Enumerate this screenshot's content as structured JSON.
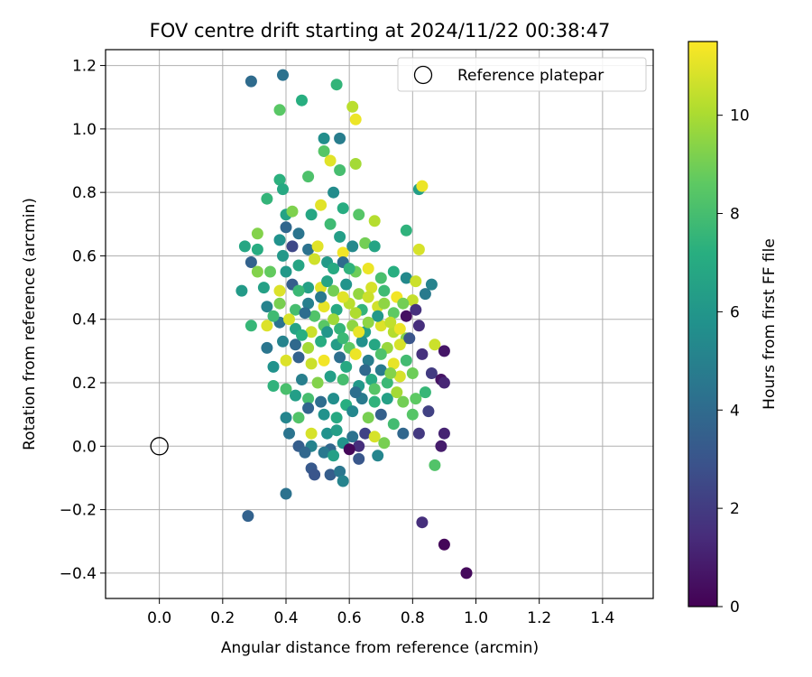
{
  "chart_data": {
    "type": "scatter",
    "title": "FOV centre drift starting at 2024/11/22 00:38:47",
    "xlabel": "Angular distance from reference (arcmin)",
    "ylabel": "Rotation from reference (arcmin)",
    "xlim": [
      -0.17,
      1.56
    ],
    "ylim": [
      -0.48,
      1.25
    ],
    "xticks": [
      "0.0",
      "0.2",
      "0.4",
      "0.6",
      "0.8",
      "1.0",
      "1.2",
      "1.4"
    ],
    "yticks": [
      "−0.4",
      "−0.2",
      "0.0",
      "0.2",
      "0.4",
      "0.6",
      "0.8",
      "1.0",
      "1.2"
    ],
    "grid": true,
    "legend": {
      "placement": "top-right",
      "entries": [
        "Reference platepar"
      ]
    },
    "reference_point": {
      "x": 0.0,
      "y": 0.0
    },
    "colorbar": {
      "label": "Hours from first FF file",
      "range": [
        0,
        11.5
      ],
      "ticks": [
        "0",
        "2",
        "4",
        "6",
        "8",
        "10"
      ],
      "colormap": [
        "#440154",
        "#472d7b",
        "#3b528b",
        "#2c728e",
        "#21918c",
        "#28ae80",
        "#5ec962",
        "#addc30",
        "#fde725"
      ]
    },
    "series": [
      {
        "points": [
          [
            0.97,
            -0.4,
            0.3
          ],
          [
            0.9,
            -0.31,
            0.2
          ],
          [
            0.83,
            -0.24,
            1.5
          ],
          [
            0.28,
            -0.22,
            3.6
          ],
          [
            0.4,
            -0.15,
            4.3
          ],
          [
            0.29,
            1.15,
            4.0
          ],
          [
            0.39,
            1.17,
            4.3
          ],
          [
            0.56,
            1.14,
            7.5
          ],
          [
            0.45,
            1.09,
            7.2
          ],
          [
            0.38,
            1.06,
            8.5
          ],
          [
            0.61,
            1.07,
            10.3
          ],
          [
            0.62,
            1.03,
            11.2
          ],
          [
            0.52,
            0.97,
            5.6
          ],
          [
            0.57,
            0.97,
            4.8
          ],
          [
            0.52,
            0.93,
            8.4
          ],
          [
            0.54,
            0.9,
            11.0
          ],
          [
            0.62,
            0.89,
            9.9
          ],
          [
            0.57,
            0.87,
            8.0
          ],
          [
            0.38,
            0.84,
            7.3
          ],
          [
            0.47,
            0.85,
            8.2
          ],
          [
            0.82,
            0.81,
            6.4
          ],
          [
            0.83,
            0.82,
            11.2
          ],
          [
            0.34,
            0.78,
            7.5
          ],
          [
            0.39,
            0.81,
            6.9
          ],
          [
            0.55,
            0.8,
            5.5
          ],
          [
            0.4,
            0.73,
            6.6
          ],
          [
            0.42,
            0.74,
            9.2
          ],
          [
            0.48,
            0.73,
            6.8
          ],
          [
            0.51,
            0.76,
            11.0
          ],
          [
            0.58,
            0.75,
            7.1
          ],
          [
            0.63,
            0.73,
            8.4
          ],
          [
            0.68,
            0.71,
            10.2
          ],
          [
            0.31,
            0.67,
            9.3
          ],
          [
            0.38,
            0.65,
            5.8
          ],
          [
            0.4,
            0.69,
            3.8
          ],
          [
            0.44,
            0.67,
            4.4
          ],
          [
            0.54,
            0.7,
            7.8
          ],
          [
            0.57,
            0.66,
            6.4
          ],
          [
            0.27,
            0.63,
            6.8
          ],
          [
            0.31,
            0.62,
            7.1
          ],
          [
            0.39,
            0.6,
            6.1
          ],
          [
            0.42,
            0.63,
            2.5
          ],
          [
            0.47,
            0.62,
            4.3
          ],
          [
            0.5,
            0.63,
            11.0
          ],
          [
            0.53,
            0.58,
            6.2
          ],
          [
            0.58,
            0.61,
            11.3
          ],
          [
            0.61,
            0.63,
            5.4
          ],
          [
            0.65,
            0.64,
            9.0
          ],
          [
            0.68,
            0.63,
            6.7
          ],
          [
            0.78,
            0.68,
            7.4
          ],
          [
            0.82,
            0.62,
            10.8
          ],
          [
            0.29,
            0.58,
            3.6
          ],
          [
            0.31,
            0.55,
            9.3
          ],
          [
            0.35,
            0.55,
            8.7
          ],
          [
            0.4,
            0.55,
            6.1
          ],
          [
            0.44,
            0.57,
            6.7
          ],
          [
            0.49,
            0.59,
            10.7
          ],
          [
            0.55,
            0.56,
            7.0
          ],
          [
            0.58,
            0.58,
            4.0
          ],
          [
            0.62,
            0.55,
            8.9
          ],
          [
            0.66,
            0.56,
            11.2
          ],
          [
            0.7,
            0.53,
            8.1
          ],
          [
            0.74,
            0.55,
            7.2
          ],
          [
            0.78,
            0.53,
            5.4
          ],
          [
            0.81,
            0.52,
            10.6
          ],
          [
            0.86,
            0.51,
            5.1
          ],
          [
            0.26,
            0.49,
            6.2
          ],
          [
            0.33,
            0.5,
            6.5
          ],
          [
            0.38,
            0.49,
            10.9
          ],
          [
            0.42,
            0.51,
            3.4
          ],
          [
            0.47,
            0.5,
            6.5
          ],
          [
            0.51,
            0.5,
            11.0
          ],
          [
            0.55,
            0.49,
            9.0
          ],
          [
            0.59,
            0.51,
            5.9
          ],
          [
            0.63,
            0.48,
            9.6
          ],
          [
            0.67,
            0.5,
            10.8
          ],
          [
            0.71,
            0.49,
            7.8
          ],
          [
            0.75,
            0.47,
            11.3
          ],
          [
            0.8,
            0.46,
            10.5
          ],
          [
            0.84,
            0.48,
            4.7
          ],
          [
            0.34,
            0.44,
            5.1
          ],
          [
            0.38,
            0.45,
            9.1
          ],
          [
            0.43,
            0.43,
            8.0
          ],
          [
            0.47,
            0.45,
            4.9
          ],
          [
            0.52,
            0.44,
            11.1
          ],
          [
            0.56,
            0.43,
            6.9
          ],
          [
            0.6,
            0.45,
            10.3
          ],
          [
            0.64,
            0.43,
            7.5
          ],
          [
            0.69,
            0.44,
            10.7
          ],
          [
            0.74,
            0.42,
            8.6
          ],
          [
            0.78,
            0.41,
            0.5
          ],
          [
            0.81,
            0.43,
            1.6
          ],
          [
            0.29,
            0.38,
            7.6
          ],
          [
            0.34,
            0.38,
            10.9
          ],
          [
            0.38,
            0.39,
            4.4
          ],
          [
            0.43,
            0.37,
            6.6
          ],
          [
            0.48,
            0.36,
            10.6
          ],
          [
            0.52,
            0.38,
            8.5
          ],
          [
            0.57,
            0.37,
            7.5
          ],
          [
            0.61,
            0.38,
            9.5
          ],
          [
            0.65,
            0.36,
            6.5
          ],
          [
            0.7,
            0.38,
            10.9
          ],
          [
            0.74,
            0.36,
            10.2
          ],
          [
            0.78,
            0.34,
            9.3
          ],
          [
            0.82,
            0.38,
            1.5
          ],
          [
            0.34,
            0.31,
            4.5
          ],
          [
            0.39,
            0.33,
            5.1
          ],
          [
            0.43,
            0.32,
            3.9
          ],
          [
            0.47,
            0.31,
            9.9
          ],
          [
            0.51,
            0.33,
            7.1
          ],
          [
            0.56,
            0.32,
            6.3
          ],
          [
            0.6,
            0.31,
            8.6
          ],
          [
            0.64,
            0.33,
            5.7
          ],
          [
            0.68,
            0.32,
            6.8
          ],
          [
            0.72,
            0.31,
            9.7
          ],
          [
            0.76,
            0.32,
            10.8
          ],
          [
            0.87,
            0.32,
            10.6
          ],
          [
            0.9,
            0.3,
            0.7
          ],
          [
            0.36,
            0.25,
            5.8
          ],
          [
            0.4,
            0.27,
            10.9
          ],
          [
            0.44,
            0.28,
            3.6
          ],
          [
            0.48,
            0.26,
            10.6
          ],
          [
            0.52,
            0.27,
            11.3
          ],
          [
            0.57,
            0.28,
            4.2
          ],
          [
            0.62,
            0.29,
            11.2
          ],
          [
            0.66,
            0.27,
            4.8
          ],
          [
            0.7,
            0.29,
            8.2
          ],
          [
            0.74,
            0.26,
            11.1
          ],
          [
            0.78,
            0.27,
            7.9
          ],
          [
            0.83,
            0.29,
            1.6
          ],
          [
            0.36,
            0.19,
            7.4
          ],
          [
            0.4,
            0.18,
            8.1
          ],
          [
            0.45,
            0.21,
            4.9
          ],
          [
            0.5,
            0.2,
            9.3
          ],
          [
            0.54,
            0.22,
            6.4
          ],
          [
            0.58,
            0.21,
            8.0
          ],
          [
            0.63,
            0.19,
            6.1
          ],
          [
            0.67,
            0.21,
            7.0
          ],
          [
            0.72,
            0.2,
            7.7
          ],
          [
            0.76,
            0.22,
            10.8
          ],
          [
            0.8,
            0.23,
            8.9
          ],
          [
            0.86,
            0.23,
            2.0
          ],
          [
            0.89,
            0.21,
            0.6
          ],
          [
            0.9,
            0.2,
            1.2
          ],
          [
            0.47,
            0.15,
            8.0
          ],
          [
            0.51,
            0.14,
            4.1
          ],
          [
            0.55,
            0.15,
            5.6
          ],
          [
            0.59,
            0.13,
            7.2
          ],
          [
            0.64,
            0.15,
            4.7
          ],
          [
            0.68,
            0.14,
            7.4
          ],
          [
            0.72,
            0.15,
            6.5
          ],
          [
            0.77,
            0.14,
            9.0
          ],
          [
            0.81,
            0.15,
            8.6
          ],
          [
            0.84,
            0.17,
            7.6
          ],
          [
            0.4,
            0.09,
            5.2
          ],
          [
            0.44,
            0.09,
            8.3
          ],
          [
            0.47,
            0.12,
            3.7
          ],
          [
            0.52,
            0.1,
            5.8
          ],
          [
            0.56,
            0.09,
            6.9
          ],
          [
            0.61,
            0.11,
            5.3
          ],
          [
            0.66,
            0.09,
            9.1
          ],
          [
            0.7,
            0.1,
            3.5
          ],
          [
            0.74,
            0.07,
            7.9
          ],
          [
            0.8,
            0.1,
            8.4
          ],
          [
            0.85,
            0.11,
            2.2
          ],
          [
            0.41,
            0.04,
            4.4
          ],
          [
            0.48,
            0.04,
            10.8
          ],
          [
            0.53,
            0.04,
            5.8
          ],
          [
            0.56,
            0.05,
            6.4
          ],
          [
            0.61,
            0.03,
            4.3
          ],
          [
            0.65,
            0.04,
            2.3
          ],
          [
            0.68,
            0.03,
            10.8
          ],
          [
            0.71,
            0.01,
            9.1
          ],
          [
            0.77,
            0.04,
            3.8
          ],
          [
            0.82,
            0.04,
            1.9
          ],
          [
            0.9,
            0.04,
            1.1
          ],
          [
            0.44,
            0.0,
            3.4
          ],
          [
            0.48,
            0.0,
            5.1
          ],
          [
            0.54,
            -0.01,
            3.8
          ],
          [
            0.58,
            0.01,
            5.9
          ],
          [
            0.63,
            0.0,
            1.5
          ],
          [
            0.89,
            0.0,
            0.9
          ],
          [
            0.46,
            -0.02,
            3.8
          ],
          [
            0.52,
            -0.02,
            4.6
          ],
          [
            0.55,
            -0.03,
            6.5
          ],
          [
            0.69,
            -0.03,
            5.2
          ],
          [
            0.6,
            -0.01,
            0.2
          ],
          [
            0.87,
            -0.06,
            8.3
          ],
          [
            0.48,
            -0.07,
            3.2
          ],
          [
            0.49,
            -0.09,
            3.0
          ],
          [
            0.54,
            -0.09,
            3.4
          ],
          [
            0.57,
            -0.08,
            4.5
          ],
          [
            0.58,
            -0.11,
            5.1
          ],
          [
            0.63,
            -0.04,
            3.1
          ],
          [
            0.58,
            0.34,
            7.7
          ],
          [
            0.62,
            0.42,
            10.1
          ],
          [
            0.53,
            0.52,
            6.7
          ],
          [
            0.49,
            0.41,
            8.3
          ],
          [
            0.45,
            0.35,
            7.2
          ],
          [
            0.66,
            0.47,
            10.6
          ],
          [
            0.71,
            0.45,
            9.5
          ],
          [
            0.58,
            0.47,
            11.0
          ],
          [
            0.6,
            0.56,
            7.4
          ],
          [
            0.51,
            0.47,
            4.7
          ],
          [
            0.44,
            0.49,
            7.7
          ],
          [
            0.63,
            0.36,
            11.1
          ],
          [
            0.55,
            0.4,
            9.8
          ],
          [
            0.69,
            0.41,
            6.1
          ],
          [
            0.73,
            0.39,
            10.4
          ],
          [
            0.77,
            0.45,
            9.0
          ],
          [
            0.36,
            0.41,
            7.8
          ],
          [
            0.41,
            0.4,
            10.8
          ],
          [
            0.46,
            0.42,
            4.1
          ],
          [
            0.53,
            0.36,
            6.0
          ],
          [
            0.66,
            0.39,
            9.5
          ],
          [
            0.76,
            0.37,
            11.2
          ],
          [
            0.79,
            0.34,
            3.0
          ],
          [
            0.59,
            0.25,
            6.9
          ],
          [
            0.65,
            0.24,
            3.9
          ],
          [
            0.7,
            0.24,
            4.7
          ],
          [
            0.73,
            0.23,
            9.3
          ],
          [
            0.43,
            0.16,
            6.4
          ],
          [
            0.62,
            0.17,
            4.2
          ],
          [
            0.68,
            0.18,
            8.4
          ],
          [
            0.75,
            0.17,
            9.9
          ]
        ]
      }
    ]
  }
}
